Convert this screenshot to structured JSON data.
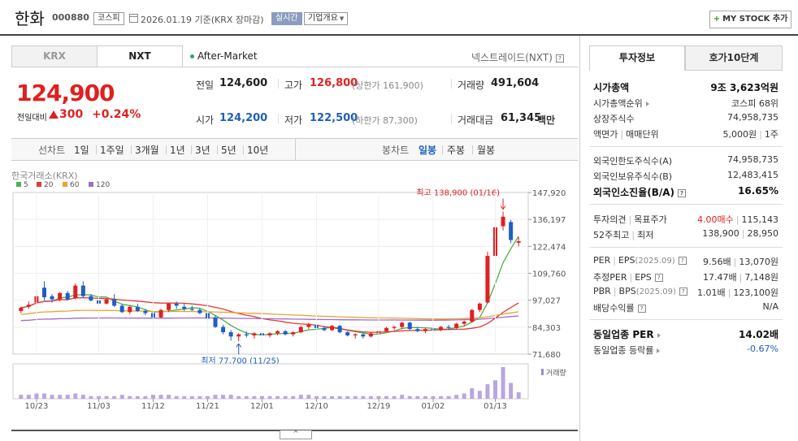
{
  "header": {
    "company_name": "한화",
    "company_code": "000880",
    "market": "코스피",
    "date_text": "2026.01.19 기준(KRX 장마감)",
    "realtime": "실시간",
    "corp_info": "기업개요",
    "my_stock": "MY STOCK 추가"
  },
  "exchange_tabs": {
    "krx": "KRX",
    "nxt": "NXT"
  },
  "session": "After-Market",
  "nxt_link": "넥스트레이드(NXT)",
  "price": {
    "current": "124,900",
    "change_label": "전일대비",
    "change_amount": "300",
    "change_rate": "+0.24%"
  },
  "quote": {
    "prev_close_label": "전일",
    "prev_close": "124,600",
    "high_label": "고가",
    "high": "126,800",
    "upper_limit": "(상한가 161,900)",
    "volume_label": "거래량",
    "volume": "491,604",
    "open_label": "시가",
    "open": "124,200",
    "low_label": "저가",
    "low": "122,500",
    "lower_limit": "(하한가 87,300)",
    "amount_label": "거래대금",
    "amount": "61,345",
    "amount_unit": "백만"
  },
  "period_bar": {
    "line_label": "선차트",
    "line_periods": [
      "1일",
      "1주일",
      "3개월",
      "1년",
      "3년",
      "5년",
      "10년"
    ],
    "candle_label": "봉차트",
    "candle_periods": [
      "일봉",
      "주봉",
      "월봉"
    ],
    "active_candle": "일봉"
  },
  "chart_data": {
    "type": "candlestick",
    "source": "한국거래소(KRX)",
    "legend": [
      {
        "name": "5",
        "color": "#4caf50"
      },
      {
        "name": "20",
        "color": "#e53935"
      },
      {
        "name": "60",
        "color": "#f0a030"
      },
      {
        "name": "120",
        "color": "#9c6ccc"
      }
    ],
    "y_ticks": [
      "147,920",
      "136,197",
      "122,474",
      "109,760",
      "97,027",
      "84,303",
      "71,680"
    ],
    "ylim": [
      71680,
      147920
    ],
    "x_ticks": [
      "10/23",
      "11/03",
      "11/12",
      "11/21",
      "12/01",
      "12/10",
      "12/19",
      "01/02",
      "01/13"
    ],
    "high_annotation": "최고 138,900 (01/16)",
    "low_annotation": "최저 77,700 (11/25)",
    "volume_label": "거래량",
    "candles": [
      [
        92000,
        94000,
        91000,
        93500
      ],
      [
        94000,
        96500,
        93000,
        95000
      ],
      [
        96000,
        102000,
        95000,
        99000
      ],
      [
        103000,
        106000,
        97000,
        98500
      ],
      [
        99000,
        100000,
        96000,
        97500
      ],
      [
        97500,
        101000,
        96500,
        100500
      ],
      [
        100500,
        101500,
        97000,
        97500
      ],
      [
        98000,
        105000,
        97500,
        104000
      ],
      [
        104000,
        106000,
        98000,
        99000
      ],
      [
        99000,
        100000,
        96500,
        97000
      ],
      [
        97000,
        98000,
        94500,
        95500
      ],
      [
        95500,
        98000,
        95000,
        97500
      ],
      [
        97500,
        100000,
        94000,
        94500
      ],
      [
        94500,
        95500,
        91000,
        91500
      ],
      [
        91500,
        94500,
        90500,
        94000
      ],
      [
        94000,
        95500,
        91500,
        92000
      ],
      [
        92000,
        93000,
        90000,
        91000
      ],
      [
        91000,
        93000,
        88000,
        89000
      ],
      [
        89000,
        93000,
        88500,
        92500
      ],
      [
        92500,
        96000,
        91500,
        95500
      ],
      [
        95500,
        96500,
        93000,
        94500
      ],
      [
        94000,
        95500,
        92000,
        93000
      ],
      [
        93000,
        94500,
        92000,
        92500
      ],
      [
        92500,
        93500,
        90500,
        91000
      ],
      [
        91000,
        91500,
        88000,
        88500
      ],
      [
        89000,
        90000,
        84000,
        84500
      ],
      [
        84500,
        85500,
        81000,
        82000
      ],
      [
        82000,
        83000,
        78000,
        80000
      ],
      [
        80000,
        81500,
        77700,
        81000
      ],
      [
        81000,
        82500,
        79500,
        80500
      ],
      [
        80500,
        82000,
        79000,
        81500
      ],
      [
        81500,
        82500,
        80000,
        80500
      ],
      [
        80500,
        82000,
        79500,
        81500
      ],
      [
        81500,
        83000,
        80500,
        82500
      ],
      [
        82500,
        83000,
        80500,
        81000
      ],
      [
        81000,
        82500,
        80000,
        82000
      ],
      [
        82000,
        85000,
        81500,
        84500
      ],
      [
        84500,
        86500,
        83500,
        85500
      ],
      [
        85500,
        86000,
        83000,
        84000
      ],
      [
        84000,
        85000,
        82500,
        83000
      ],
      [
        83000,
        85500,
        82500,
        85000
      ],
      [
        85000,
        85500,
        81500,
        82000
      ],
      [
        82000,
        82500,
        80000,
        80500
      ],
      [
        80500,
        81500,
        79000,
        81000
      ],
      [
        81000,
        81500,
        79000,
        80000
      ],
      [
        80000,
        82000,
        79500,
        81500
      ],
      [
        81500,
        83000,
        81000,
        82500
      ],
      [
        82500,
        84500,
        82000,
        84000
      ],
      [
        84000,
        85000,
        83000,
        84500
      ],
      [
        84500,
        87000,
        83500,
        86500
      ],
      [
        86500,
        87000,
        83000,
        83500
      ],
      [
        83500,
        84500,
        82000,
        82500
      ],
      [
        82500,
        84000,
        81500,
        83500
      ],
      [
        83500,
        84500,
        82500,
        83000
      ],
      [
        83000,
        85000,
        82500,
        84500
      ],
      [
        84500,
        85500,
        83000,
        84000
      ],
      [
        84000,
        86500,
        83500,
        86000
      ],
      [
        86000,
        87500,
        85000,
        87000
      ],
      [
        87000,
        93000,
        86500,
        92500
      ],
      [
        92500,
        96000,
        91500,
        95500
      ],
      [
        96000,
        120000,
        95500,
        118000
      ],
      [
        118000,
        133000,
        117000,
        131500
      ],
      [
        132000,
        138900,
        130000,
        136500
      ],
      [
        134000,
        135000,
        124000,
        125500
      ],
      [
        124200,
        126800,
        122500,
        124900
      ]
    ],
    "volumes": [
      3,
      3,
      4,
      4,
      3,
      3,
      3,
      4,
      3,
      2,
      2,
      2,
      2,
      3,
      2,
      2,
      2,
      3,
      3,
      3,
      2,
      2,
      2,
      2,
      2,
      3,
      3,
      3,
      2,
      2,
      2,
      2,
      2,
      2,
      2,
      2,
      3,
      3,
      2,
      2,
      2,
      2,
      2,
      2,
      2,
      2,
      2,
      2,
      2,
      3,
      2,
      2,
      2,
      2,
      2,
      2,
      3,
      4,
      8,
      6,
      11,
      14,
      24,
      12,
      5
    ]
  },
  "invest_panel": {
    "tabs": [
      "투자정보",
      "호가10단계"
    ],
    "market_cap_label": "시가총액",
    "market_cap": "9조 3,623억원",
    "cap_rank_label": "시가총액순위",
    "cap_rank": "코스피 68위",
    "shares_label": "상장주식수",
    "shares": "74,958,735",
    "face_label": "액면가",
    "lot_label": "매매단위",
    "face_value": "5,000원",
    "lot": "1주",
    "foreign_limit_label": "외국인한도주식수(A)",
    "foreign_limit": "74,958,735",
    "foreign_hold_label": "외국인보유주식수(B)",
    "foreign_hold": "12,483,415",
    "foreign_ratio_label": "외국인소진율(B/A)",
    "foreign_ratio": "16.65%",
    "opinion_label": "투자의견",
    "target_label": "목표주가",
    "opinion": "4.00매수",
    "target": "115,143",
    "week52_label": "52주최고",
    "week52_low_label": "최저",
    "week52_high": "138,900",
    "week52_low": "28,950",
    "per_label": "PER",
    "eps_label": "EPS",
    "per_date": "(2025.09)",
    "per": "9.56배",
    "eps": "13,070원",
    "est_per_label": "추정PER",
    "est_eps_label": "EPS",
    "est_per": "17.47배",
    "est_eps": "7,148원",
    "pbr_label": "PBR",
    "bps_label": "BPS",
    "pbr_date": "(2025.09)",
    "pbr": "1.01배",
    "bps": "123,100원",
    "dividend_label": "배당수익률",
    "dividend": "N/A",
    "industry_per_label": "동일업종 PER",
    "industry_per": "14.02배",
    "industry_rate_label": "동일업종 등락률",
    "industry_rate": "-0.67%"
  },
  "colors": {
    "up": "#e02020",
    "down": "#1f5fc1"
  }
}
